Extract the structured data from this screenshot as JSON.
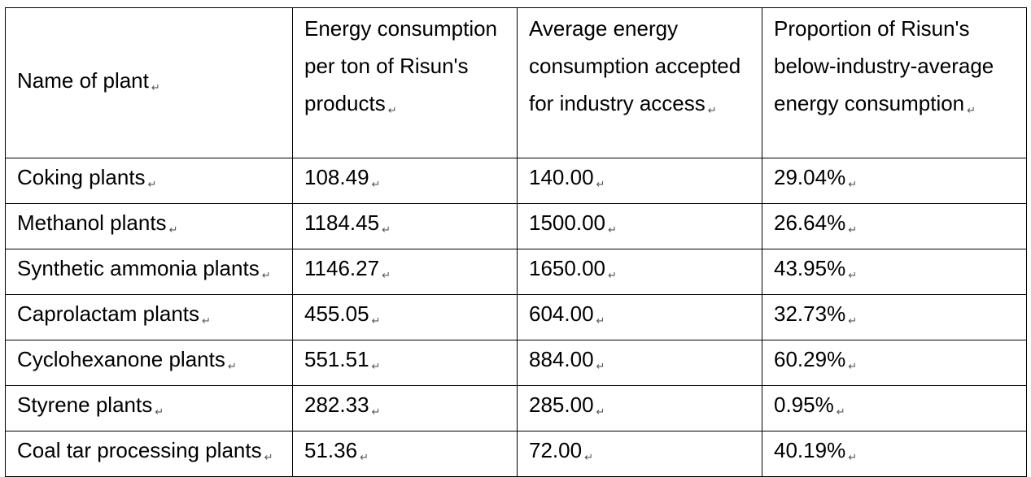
{
  "table": {
    "headers": [
      "Name of plant",
      "Energy consumption per ton of Risun's products",
      "Average energy consumption accepted for industry access",
      "Proportion of Risun's below-industry-average energy consumption"
    ],
    "rows": [
      [
        "Coking plants",
        "108.49",
        "140.00",
        "29.04%"
      ],
      [
        "Methanol plants",
        "1184.45",
        "1500.00",
        "26.64%"
      ],
      [
        "Synthetic ammonia plants",
        "1146.27",
        "1650.00",
        "43.95%"
      ],
      [
        "Caprolactam plants",
        "455.05",
        "604.00",
        "32.73%"
      ],
      [
        "Cyclohexanone plants",
        "551.51",
        "884.00",
        "60.29%"
      ],
      [
        "Styrene plants",
        "282.33",
        "285.00",
        "0.95%"
      ],
      [
        "Coal tar processing plants",
        "51.36",
        "72.00",
        "40.19%"
      ]
    ]
  }
}
